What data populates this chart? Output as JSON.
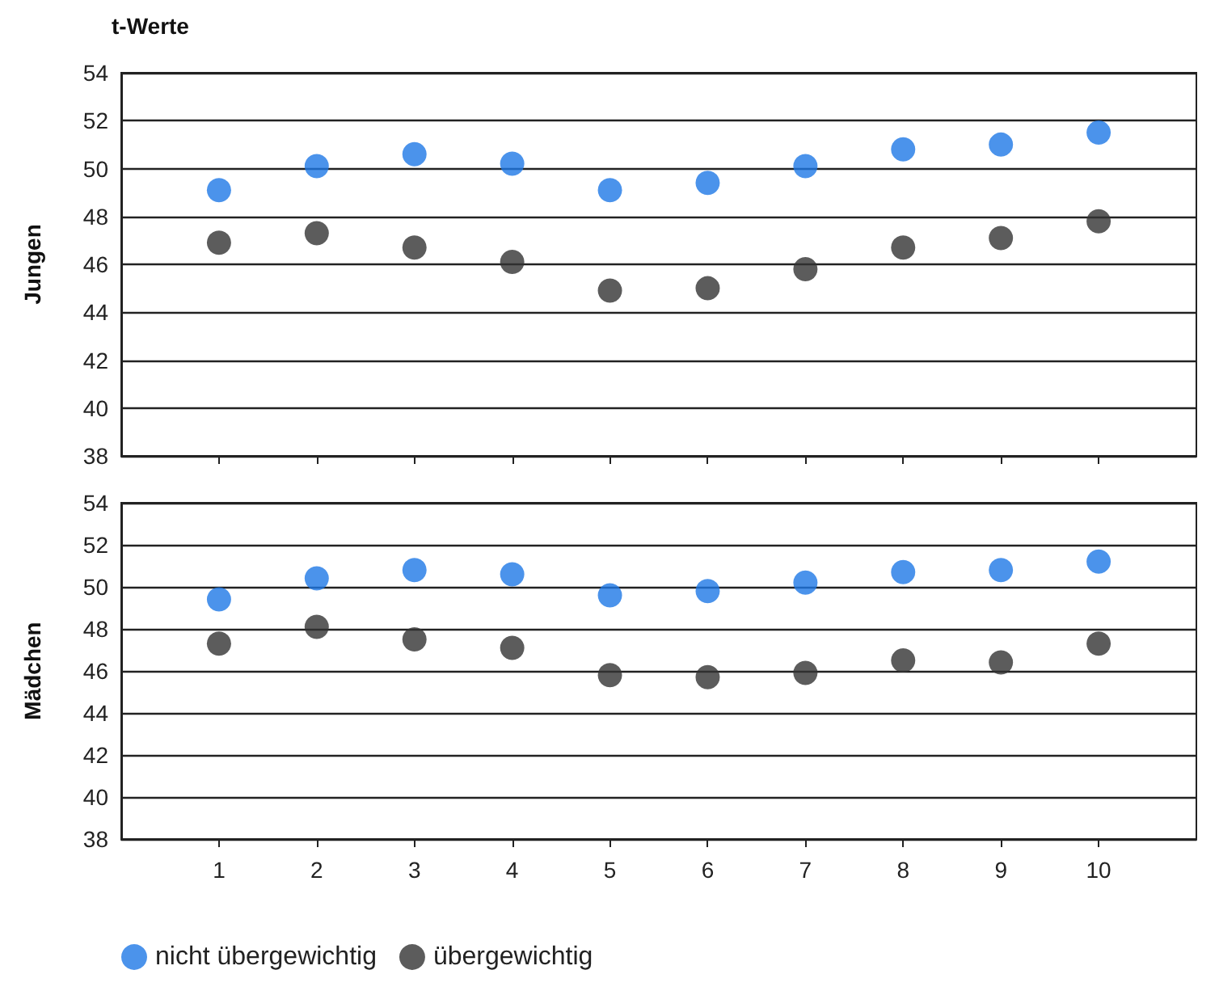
{
  "chart_data": [
    {
      "type": "scatter",
      "title": "t-Werte",
      "ylabel": "Jungen",
      "x": [
        1,
        2,
        3,
        4,
        5,
        6,
        7,
        8,
        9,
        10
      ],
      "xlim": [
        0,
        11
      ],
      "xticks": [
        1,
        2,
        3,
        4,
        5,
        6,
        7,
        8,
        9,
        10
      ],
      "ylim": [
        38,
        54
      ],
      "yticks": [
        38,
        40,
        42,
        44,
        46,
        48,
        50,
        52,
        54
      ],
      "grid": "y",
      "marker": "circle",
      "tick_labels": "y",
      "legend": false,
      "series": [
        {
          "color": "#1e78e6",
          "values": [
            49.1,
            50.1,
            50.6,
            50.2,
            49.1,
            49.4,
            50.1,
            50.8,
            51.0,
            51.5
          ]
        },
        {
          "color": "#333333",
          "values": [
            46.9,
            47.3,
            46.7,
            46.1,
            44.9,
            45.0,
            45.8,
            46.7,
            47.1,
            47.8
          ]
        }
      ]
    },
    {
      "type": "scatter",
      "ylabel": "Mädchen",
      "x": [
        1,
        2,
        3,
        4,
        5,
        6,
        7,
        8,
        9,
        10
      ],
      "xlim": [
        0,
        11
      ],
      "xticks": [
        1,
        2,
        3,
        4,
        5,
        6,
        7,
        8,
        9,
        10
      ],
      "ylim": [
        38,
        54
      ],
      "yticks": [
        38,
        40,
        42,
        44,
        46,
        48,
        50,
        52,
        54
      ],
      "grid": "y",
      "marker": "circle",
      "legend": "bottom left",
      "series": [
        {
          "name": "nicht übergewichtig",
          "color": "#1e78e6",
          "values": [
            49.4,
            50.4,
            50.8,
            50.6,
            49.6,
            49.8,
            50.2,
            50.7,
            50.8,
            51.2
          ]
        },
        {
          "name": "übergewichtig",
          "color": "#333333",
          "values": [
            47.3,
            48.1,
            47.5,
            47.1,
            45.8,
            45.7,
            45.9,
            46.5,
            46.4,
            47.3
          ]
        }
      ]
    }
  ]
}
